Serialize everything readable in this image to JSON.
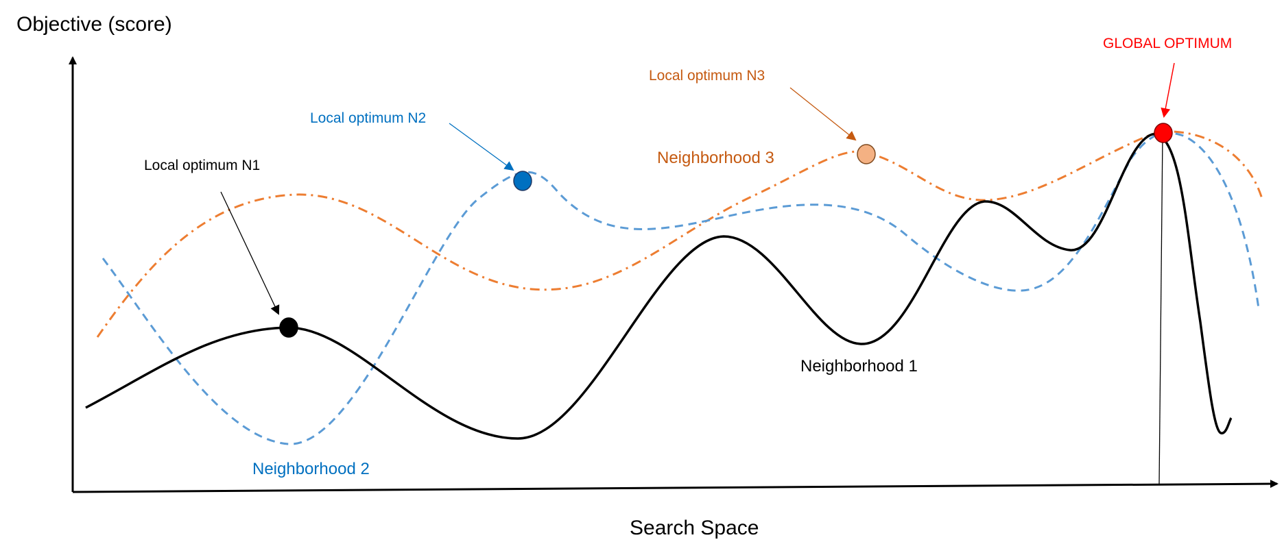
{
  "axes": {
    "y_label": "Objective (score)",
    "x_label": "Search Space"
  },
  "curves": [
    {
      "name": "Neighborhood 1",
      "label": "Neighborhood 1",
      "color": "#000000"
    },
    {
      "name": "Neighborhood 2",
      "label": "Neighborhood 2",
      "color": "#5B9BD5"
    },
    {
      "name": "Neighborhood 3",
      "label": "Neighborhood 3",
      "color": "#ED7D31"
    }
  ],
  "annotations": {
    "n1": {
      "text": "Local optimum N1",
      "color": "#000000"
    },
    "n2": {
      "text": "Local optimum N2",
      "color": "#0070C0"
    },
    "n3": {
      "text": "Local optimum N3",
      "color": "#C55A11"
    },
    "global": {
      "text": "GLOBAL OPTIMUM",
      "color": "#FF0000"
    }
  },
  "label_colors": {
    "neighborhood2": "#0070C0",
    "neighborhood3": "#C55A11"
  },
  "markers": {
    "n1": {
      "fill": "#000000"
    },
    "n2": {
      "fill": "#0070C0"
    },
    "n3": {
      "fill": "#F4B183"
    },
    "global": {
      "fill": "#FF0000"
    }
  }
}
